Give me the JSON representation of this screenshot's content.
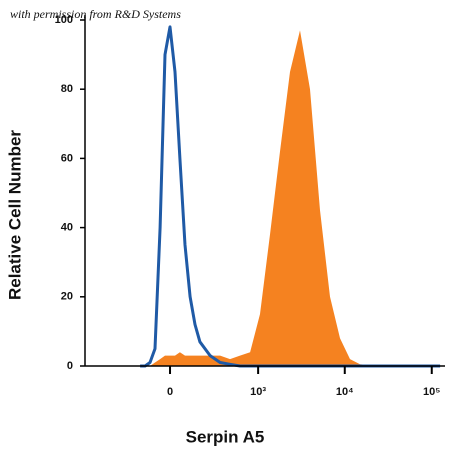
{
  "chart_data": {
    "type": "histogram-overlay",
    "note_text": "with permission from R&D Systems",
    "x_label": "Serpin A5",
    "y_label": "Relative Cell Number",
    "xscale": "biexponential",
    "xlim": [
      -920,
      142000
    ],
    "ylim": [
      0,
      100
    ],
    "xticks": [
      0,
      {
        "value": 1000,
        "label": "10³"
      },
      {
        "value": 10000,
        "label": "10⁴"
      },
      {
        "value": 100000,
        "label": "10⁵"
      }
    ],
    "yticks": [
      0,
      20,
      40,
      60,
      80,
      100
    ],
    "x": [
      -172,
      -139,
      -109,
      -80,
      -52,
      -26,
      0,
      26,
      52,
      80,
      109,
      139,
      172,
      249,
      343,
      459,
      610,
      804,
      1052,
      1376,
      1797,
      2344,
      3054,
      3980,
      5190,
      6765,
      8820,
      11500,
      14980,
      25500,
      43100,
      124800
    ],
    "series": [
      {
        "color": "#f58220",
        "fill": true,
        "values": [
          0,
          0,
          0,
          1,
          2,
          3,
          3,
          3,
          4,
          3,
          3,
          3,
          3,
          3,
          3,
          2,
          3,
          4,
          15,
          38,
          62,
          85,
          97,
          80,
          45,
          20,
          8,
          2,
          0.5,
          0,
          0,
          0
        ]
      },
      {
        "color": "#1f5aa6",
        "fill": false,
        "values": [
          0,
          0,
          1,
          5,
          40,
          90,
          98,
          85,
          60,
          35,
          20,
          12,
          7,
          3,
          1,
          0.5,
          0,
          0,
          0,
          0,
          0,
          0,
          0,
          0,
          0,
          0,
          0,
          0,
          0,
          0,
          0,
          0
        ]
      }
    ]
  }
}
